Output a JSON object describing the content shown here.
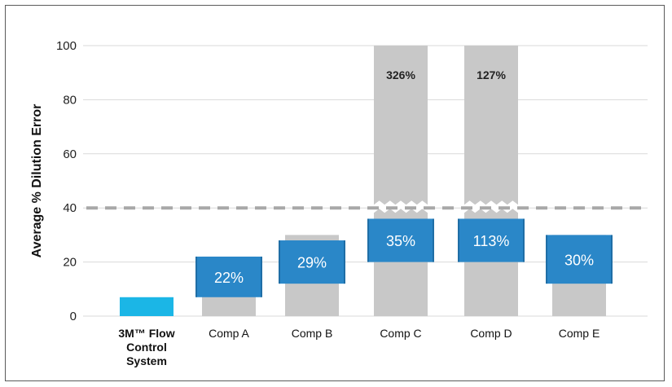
{
  "chart_data": {
    "type": "bar",
    "ylabel": "Average % Dilution Error",
    "ylim": [
      0,
      100
    ],
    "yticks": [
      "0",
      "20",
      "40",
      "60",
      "80",
      "100"
    ],
    "reference_line": 40,
    "grid": true,
    "categories": [
      {
        "lines": [
          "3M™ Flow",
          "Control",
          "System"
        ],
        "bold": true
      },
      {
        "lines": [
          "Comp A"
        ],
        "bold": false
      },
      {
        "lines": [
          "Comp B"
        ],
        "bold": false
      },
      {
        "lines": [
          "Comp C"
        ],
        "bold": false
      },
      {
        "lines": [
          "Comp D"
        ],
        "bold": false
      },
      {
        "lines": [
          "Comp E"
        ],
        "bold": false
      }
    ],
    "series": [
      {
        "values": [
          7,
          22,
          30,
          100,
          100,
          30
        ],
        "colors": [
          "#1bb6e6",
          "#c8c8c8",
          "#c8c8c8",
          "#c8c8c8",
          "#c8c8c8",
          "#c8c8c8"
        ]
      }
    ],
    "error_boxes": [
      null,
      {
        "low": 7,
        "high": 22,
        "label": "22%"
      },
      {
        "low": 12,
        "high": 28,
        "label": "29%"
      },
      {
        "low": 20,
        "high": 36,
        "label": "35%"
      },
      {
        "low": 20,
        "high": 36,
        "label": "113%"
      },
      {
        "low": 12,
        "high": 30,
        "label": "30%"
      }
    ],
    "broken_bars": [
      null,
      null,
      null,
      {
        "label": "326%",
        "break_at": 40
      },
      {
        "label": "127%",
        "break_at": 40
      },
      null
    ],
    "colors": {
      "bar": "#c8c8c8",
      "highlight": "#1bb6e6",
      "box": "#2a87c8",
      "box_edge": "#1f6ea6",
      "reference": "#a8a8a8",
      "grid": "#d9d9d9"
    }
  }
}
